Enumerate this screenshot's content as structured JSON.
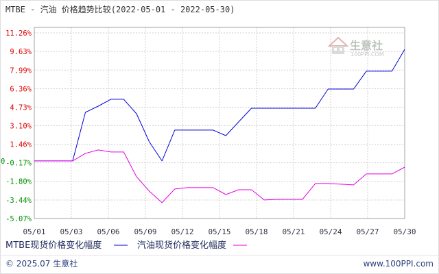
{
  "chart_data": {
    "type": "line",
    "title": "MTBE - 汽油 价格趋势比较(2022-05-01 - 2022-05-30)",
    "x": [
      "05/01",
      "05/02",
      "05/03",
      "05/04",
      "05/05",
      "05/06",
      "05/07",
      "05/08",
      "05/09",
      "05/10",
      "05/11",
      "05/12",
      "05/13",
      "05/14",
      "05/15",
      "05/16",
      "05/17",
      "05/18",
      "05/19",
      "05/20",
      "05/21",
      "05/22",
      "05/23",
      "05/24",
      "05/25",
      "05/26",
      "05/27",
      "05/28",
      "05/29",
      "05/30"
    ],
    "x_ticks": [
      "05/01",
      "05/03",
      "05/06",
      "05/09",
      "05/12",
      "05/15",
      "05/18",
      "05/21",
      "05/24",
      "05/27",
      "05/30"
    ],
    "y_ticks": [
      "11.26%",
      "9.63%",
      "7.99%",
      "6.36%",
      "4.73%",
      "3.10%",
      "1.46%",
      "-0.17%",
      "-1.80%",
      "-3.44%",
      "-5.07%"
    ],
    "y_zero_label": "0",
    "ylim": [
      -5.07,
      11.26
    ],
    "grid": true,
    "legend": "bottom-left",
    "label_colors": {
      "positive": "#e00000",
      "negative": "#009000"
    },
    "series": [
      {
        "name": "MTBE现货价格变化幅度",
        "color": "#0000dd",
        "values": [
          0,
          0,
          0,
          0,
          4.27,
          4.81,
          5.42,
          5.42,
          4.15,
          1.68,
          0,
          2.71,
          2.71,
          2.71,
          2.71,
          2.22,
          3.43,
          4.63,
          4.63,
          4.63,
          4.63,
          4.63,
          4.63,
          6.32,
          6.32,
          6.32,
          7.89,
          7.89,
          7.89,
          9.81
        ]
      },
      {
        "name": "汽油现货价格变化幅度",
        "color": "#e600e6",
        "values": [
          0,
          0,
          0,
          0,
          0.66,
          0.96,
          0.78,
          0.78,
          -1.39,
          -2.66,
          -3.68,
          -2.47,
          -2.35,
          -2.35,
          -2.35,
          -2.96,
          -2.54,
          -2.54,
          -3.44,
          -3.38,
          -3.38,
          -3.38,
          -1.99,
          -1.99,
          -2.05,
          -2.11,
          -1.15,
          -1.15,
          -1.15,
          -0.55
        ]
      }
    ]
  },
  "watermark": {
    "name": "生意社",
    "site": "100PPI.COM"
  },
  "footer": {
    "copyright": "© 2025.07 生意社",
    "site": "www.100PPI.com"
  }
}
